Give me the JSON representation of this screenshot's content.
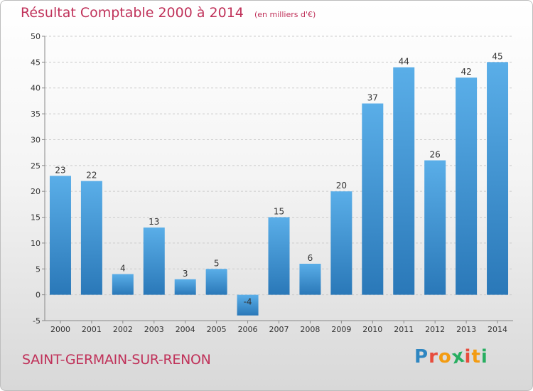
{
  "header": {
    "title": "Résultat Comptable 2000 à 2014",
    "subtitle": "(en milliers d'€)"
  },
  "footer": {
    "commune": "SAINT-GERMAIN-SUR-RENON",
    "logo_letters": [
      "P",
      "r",
      "o",
      "x",
      "i",
      "t",
      "i"
    ],
    "logo_colors": [
      "#2e86c1",
      "#e74c3c",
      "#f39c12",
      "#27ae60",
      "#e74c3c",
      "#f39c12",
      "#27ae60"
    ]
  },
  "chart_data": {
    "type": "bar",
    "title": "Résultat Comptable 2000 à 2014",
    "subtitle": "(en milliers d'€)",
    "categories": [
      "2000",
      "2001",
      "2002",
      "2003",
      "2004",
      "2005",
      "2006",
      "2007",
      "2008",
      "2009",
      "2010",
      "2011",
      "2012",
      "2013",
      "2014"
    ],
    "values": [
      23,
      22,
      4,
      13,
      3,
      5,
      -4,
      15,
      6,
      20,
      37,
      44,
      26,
      42,
      45
    ],
    "ylim": [
      -5,
      50
    ],
    "yticks": [
      -5,
      0,
      5,
      10,
      15,
      20,
      25,
      30,
      35,
      40,
      45,
      50
    ],
    "grid": true,
    "colors": {
      "bar_top": "#5aaee8",
      "bar_bottom": "#2a78b8",
      "grid": "#cccccc",
      "axis": "#888888"
    }
  }
}
